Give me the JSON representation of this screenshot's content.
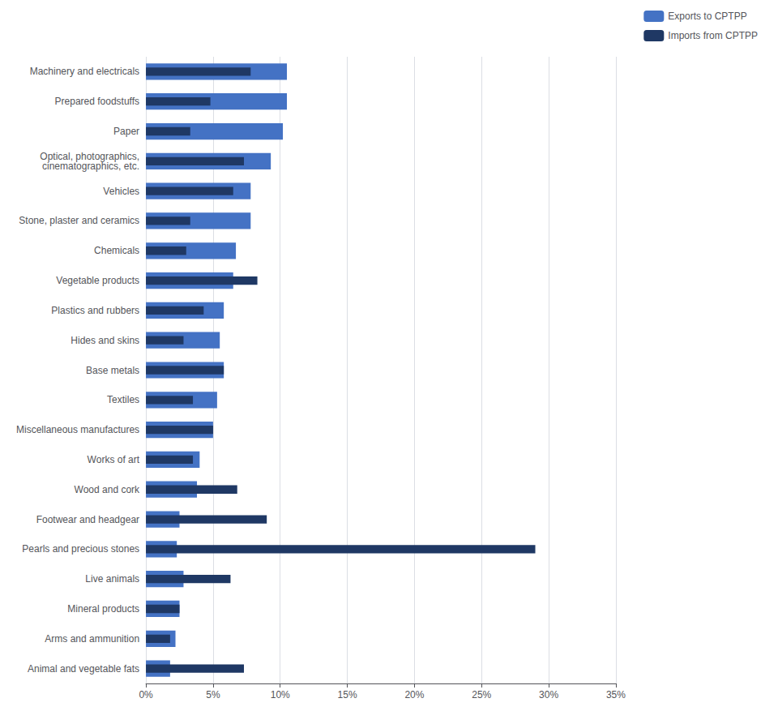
{
  "chart_data": {
    "type": "bar",
    "orientation": "horizontal",
    "categories": [
      "Machinery and electricals",
      "Prepared foodstuffs",
      "Paper",
      "Optical, photographics,\ncinematographics, etc.",
      "Vehicles",
      "Stone, plaster and ceramics",
      "Chemicals",
      "Vegetable products",
      "Plastics and rubbers",
      "Hides and skins",
      "Base metals",
      "Textiles",
      "Miscellaneous manufactures",
      "Works of art",
      "Wood and cork",
      "Footwear and headgear",
      "Pearls and precious stones",
      "Live animals",
      "Mineral products",
      "Arms and ammunition",
      "Animal and vegetable fats"
    ],
    "series": [
      {
        "name": "Exports to CPTPP",
        "color": "#4472c4",
        "values": [
          10.5,
          10.5,
          10.2,
          9.3,
          7.8,
          7.8,
          6.7,
          6.5,
          5.8,
          5.5,
          5.8,
          5.3,
          5.0,
          4.0,
          3.8,
          2.5,
          2.3,
          2.8,
          2.5,
          2.2,
          1.8
        ]
      },
      {
        "name": "Imports from CPTPP",
        "color": "#1f3864",
        "values": [
          7.8,
          4.8,
          3.3,
          7.3,
          6.5,
          3.3,
          3.0,
          8.3,
          4.3,
          2.8,
          5.8,
          3.5,
          5.0,
          3.5,
          6.8,
          9.0,
          29.0,
          6.3,
          2.5,
          1.8,
          7.3
        ]
      }
    ],
    "xlim": [
      0,
      35
    ],
    "xticks": [
      {
        "value": 0,
        "label": "0%"
      },
      {
        "value": 5,
        "label": "5%"
      },
      {
        "value": 10,
        "label": "10%"
      },
      {
        "value": 15,
        "label": "15%"
      },
      {
        "value": 20,
        "label": "20%"
      },
      {
        "value": 25,
        "label": "25%"
      },
      {
        "value": 30,
        "label": "30%"
      },
      {
        "value": 35,
        "label": "35%"
      }
    ],
    "grid": true,
    "legend": "upper right"
  }
}
